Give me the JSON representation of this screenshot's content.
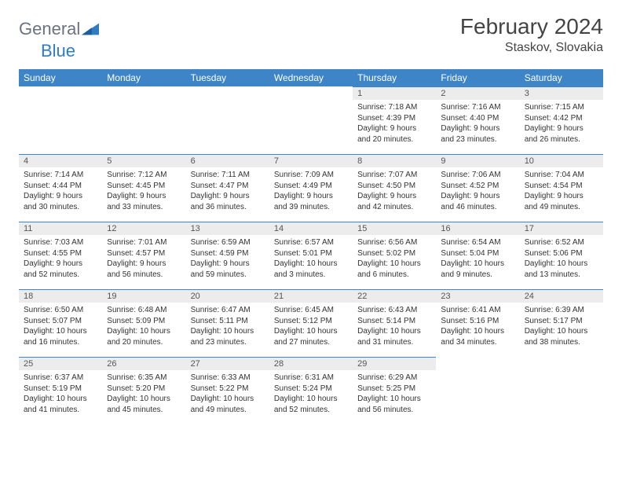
{
  "logo": {
    "part1": "General",
    "part2": "Blue"
  },
  "title": "February 2024",
  "location": "Staskov, Slovakia",
  "colors": {
    "header_bg": "#3d85c6",
    "header_text": "#ffffff",
    "daynum_bg": "#ececec",
    "accent": "#2e7cc2",
    "text": "#333333"
  },
  "weekdays": [
    "Sunday",
    "Monday",
    "Tuesday",
    "Wednesday",
    "Thursday",
    "Friday",
    "Saturday"
  ],
  "weeks": [
    [
      null,
      null,
      null,
      null,
      {
        "n": "1",
        "sunrise": "7:18 AM",
        "sunset": "4:39 PM",
        "daylight": "9 hours and 20 minutes."
      },
      {
        "n": "2",
        "sunrise": "7:16 AM",
        "sunset": "4:40 PM",
        "daylight": "9 hours and 23 minutes."
      },
      {
        "n": "3",
        "sunrise": "7:15 AM",
        "sunset": "4:42 PM",
        "daylight": "9 hours and 26 minutes."
      }
    ],
    [
      {
        "n": "4",
        "sunrise": "7:14 AM",
        "sunset": "4:44 PM",
        "daylight": "9 hours and 30 minutes."
      },
      {
        "n": "5",
        "sunrise": "7:12 AM",
        "sunset": "4:45 PM",
        "daylight": "9 hours and 33 minutes."
      },
      {
        "n": "6",
        "sunrise": "7:11 AM",
        "sunset": "4:47 PM",
        "daylight": "9 hours and 36 minutes."
      },
      {
        "n": "7",
        "sunrise": "7:09 AM",
        "sunset": "4:49 PM",
        "daylight": "9 hours and 39 minutes."
      },
      {
        "n": "8",
        "sunrise": "7:07 AM",
        "sunset": "4:50 PM",
        "daylight": "9 hours and 42 minutes."
      },
      {
        "n": "9",
        "sunrise": "7:06 AM",
        "sunset": "4:52 PM",
        "daylight": "9 hours and 46 minutes."
      },
      {
        "n": "10",
        "sunrise": "7:04 AM",
        "sunset": "4:54 PM",
        "daylight": "9 hours and 49 minutes."
      }
    ],
    [
      {
        "n": "11",
        "sunrise": "7:03 AM",
        "sunset": "4:55 PM",
        "daylight": "9 hours and 52 minutes."
      },
      {
        "n": "12",
        "sunrise": "7:01 AM",
        "sunset": "4:57 PM",
        "daylight": "9 hours and 56 minutes."
      },
      {
        "n": "13",
        "sunrise": "6:59 AM",
        "sunset": "4:59 PM",
        "daylight": "9 hours and 59 minutes."
      },
      {
        "n": "14",
        "sunrise": "6:57 AM",
        "sunset": "5:01 PM",
        "daylight": "10 hours and 3 minutes."
      },
      {
        "n": "15",
        "sunrise": "6:56 AM",
        "sunset": "5:02 PM",
        "daylight": "10 hours and 6 minutes."
      },
      {
        "n": "16",
        "sunrise": "6:54 AM",
        "sunset": "5:04 PM",
        "daylight": "10 hours and 9 minutes."
      },
      {
        "n": "17",
        "sunrise": "6:52 AM",
        "sunset": "5:06 PM",
        "daylight": "10 hours and 13 minutes."
      }
    ],
    [
      {
        "n": "18",
        "sunrise": "6:50 AM",
        "sunset": "5:07 PM",
        "daylight": "10 hours and 16 minutes."
      },
      {
        "n": "19",
        "sunrise": "6:48 AM",
        "sunset": "5:09 PM",
        "daylight": "10 hours and 20 minutes."
      },
      {
        "n": "20",
        "sunrise": "6:47 AM",
        "sunset": "5:11 PM",
        "daylight": "10 hours and 23 minutes."
      },
      {
        "n": "21",
        "sunrise": "6:45 AM",
        "sunset": "5:12 PM",
        "daylight": "10 hours and 27 minutes."
      },
      {
        "n": "22",
        "sunrise": "6:43 AM",
        "sunset": "5:14 PM",
        "daylight": "10 hours and 31 minutes."
      },
      {
        "n": "23",
        "sunrise": "6:41 AM",
        "sunset": "5:16 PM",
        "daylight": "10 hours and 34 minutes."
      },
      {
        "n": "24",
        "sunrise": "6:39 AM",
        "sunset": "5:17 PM",
        "daylight": "10 hours and 38 minutes."
      }
    ],
    [
      {
        "n": "25",
        "sunrise": "6:37 AM",
        "sunset": "5:19 PM",
        "daylight": "10 hours and 41 minutes."
      },
      {
        "n": "26",
        "sunrise": "6:35 AM",
        "sunset": "5:20 PM",
        "daylight": "10 hours and 45 minutes."
      },
      {
        "n": "27",
        "sunrise": "6:33 AM",
        "sunset": "5:22 PM",
        "daylight": "10 hours and 49 minutes."
      },
      {
        "n": "28",
        "sunrise": "6:31 AM",
        "sunset": "5:24 PM",
        "daylight": "10 hours and 52 minutes."
      },
      {
        "n": "29",
        "sunrise": "6:29 AM",
        "sunset": "5:25 PM",
        "daylight": "10 hours and 56 minutes."
      },
      null,
      null
    ]
  ],
  "labels": {
    "sunrise": "Sunrise:",
    "sunset": "Sunset:",
    "daylight": "Daylight:"
  }
}
